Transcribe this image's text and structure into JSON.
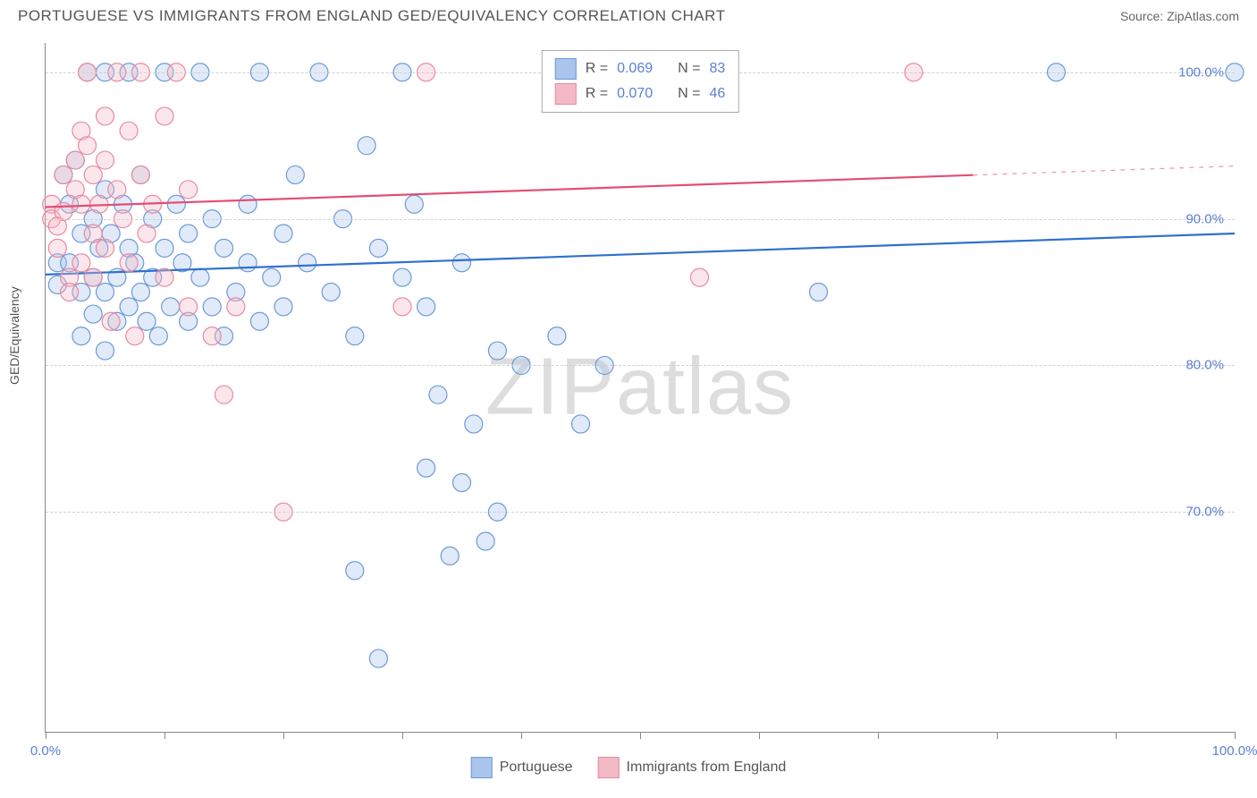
{
  "header": {
    "title": "PORTUGUESE VS IMMIGRANTS FROM ENGLAND GED/EQUIVALENCY CORRELATION CHART",
    "source": "Source: ZipAtlas.com"
  },
  "chart": {
    "type": "scatter",
    "ylabel": "GED/Equivalency",
    "watermark": "ZIPatlas",
    "background_color": "#ffffff",
    "grid_color": "#d0d0d0",
    "axis_color": "#888888",
    "tick_label_color": "#5b7fd1",
    "text_color": "#555555",
    "title_fontsize": 17,
    "label_fontsize": 14,
    "tick_fontsize": 15,
    "xlim": [
      0,
      100
    ],
    "ylim": [
      55,
      102
    ],
    "xticks": [
      0,
      10,
      20,
      30,
      40,
      50,
      60,
      70,
      80,
      90,
      100
    ],
    "yticks": [
      70,
      80,
      90,
      100
    ],
    "xtick_labels": {
      "0": "0.0%",
      "100": "100.0%"
    },
    "ytick_labels": {
      "70": "70.0%",
      "80": "80.0%",
      "90": "90.0%",
      "100": "100.0%"
    },
    "marker_radius": 10,
    "marker_opacity": 0.35,
    "marker_stroke_width": 1.2,
    "trend_line_width": 2.2,
    "series": [
      {
        "id": "portuguese",
        "label": "Portuguese",
        "fill_color": "#aac4ec",
        "stroke_color": "#6b9ad8",
        "line_color": "#2e6fd0",
        "R": "0.069",
        "N": "83",
        "trend": {
          "x1": 0,
          "y1": 86.2,
          "x2": 100,
          "y2": 89.0,
          "solid_until": 100
        },
        "points": [
          [
            1,
            87
          ],
          [
            1,
            85.5
          ],
          [
            1.5,
            93
          ],
          [
            2,
            91
          ],
          [
            2,
            87
          ],
          [
            2.5,
            94
          ],
          [
            3,
            89
          ],
          [
            3,
            85
          ],
          [
            3,
            82
          ],
          [
            3.5,
            100
          ],
          [
            4,
            90
          ],
          [
            4,
            86
          ],
          [
            4,
            83.5
          ],
          [
            4.5,
            88
          ],
          [
            5,
            100
          ],
          [
            5,
            92
          ],
          [
            5,
            85
          ],
          [
            5,
            81
          ],
          [
            5.5,
            89
          ],
          [
            6,
            86
          ],
          [
            6,
            83
          ],
          [
            6.5,
            91
          ],
          [
            7,
            100
          ],
          [
            7,
            88
          ],
          [
            7,
            84
          ],
          [
            7.5,
            87
          ],
          [
            8,
            93
          ],
          [
            8,
            85
          ],
          [
            8.5,
            83
          ],
          [
            9,
            90
          ],
          [
            9,
            86
          ],
          [
            9.5,
            82
          ],
          [
            10,
            100
          ],
          [
            10,
            88
          ],
          [
            10.5,
            84
          ],
          [
            11,
            91
          ],
          [
            11.5,
            87
          ],
          [
            12,
            83
          ],
          [
            12,
            89
          ],
          [
            13,
            100
          ],
          [
            13,
            86
          ],
          [
            14,
            90
          ],
          [
            14,
            84
          ],
          [
            15,
            88
          ],
          [
            15,
            82
          ],
          [
            16,
            85
          ],
          [
            17,
            91
          ],
          [
            17,
            87
          ],
          [
            18,
            100
          ],
          [
            18,
            83
          ],
          [
            19,
            86
          ],
          [
            20,
            89
          ],
          [
            20,
            84
          ],
          [
            21,
            93
          ],
          [
            22,
            87
          ],
          [
            23,
            100
          ],
          [
            24,
            85
          ],
          [
            25,
            90
          ],
          [
            26,
            82
          ],
          [
            26,
            66
          ],
          [
            27,
            95
          ],
          [
            28,
            88
          ],
          [
            28,
            60
          ],
          [
            30,
            100
          ],
          [
            30,
            86
          ],
          [
            31,
            91
          ],
          [
            32,
            84
          ],
          [
            32,
            73
          ],
          [
            33,
            78
          ],
          [
            34,
            67
          ],
          [
            35,
            87
          ],
          [
            35,
            72
          ],
          [
            36,
            76
          ],
          [
            37,
            68
          ],
          [
            38,
            81
          ],
          [
            38,
            70
          ],
          [
            40,
            80
          ],
          [
            43,
            82
          ],
          [
            45,
            76
          ],
          [
            47,
            80
          ],
          [
            65,
            85
          ],
          [
            85,
            100
          ],
          [
            100,
            100
          ]
        ]
      },
      {
        "id": "england",
        "label": "Immigrants from England",
        "fill_color": "#f3b9c6",
        "stroke_color": "#e88aa0",
        "line_color": "#e24d74",
        "R": "0.070",
        "N": "46",
        "trend": {
          "x1": 0,
          "y1": 90.8,
          "x2": 100,
          "y2": 93.6,
          "solid_until": 78
        },
        "points": [
          [
            0.5,
            91
          ],
          [
            0.5,
            90
          ],
          [
            1,
            89.5
          ],
          [
            1,
            88
          ],
          [
            1.5,
            93
          ],
          [
            1.5,
            90.5
          ],
          [
            2,
            86
          ],
          [
            2,
            85
          ],
          [
            2.5,
            94
          ],
          [
            2.5,
            92
          ],
          [
            3,
            96
          ],
          [
            3,
            91
          ],
          [
            3,
            87
          ],
          [
            3.5,
            100
          ],
          [
            3.5,
            95
          ],
          [
            4,
            93
          ],
          [
            4,
            89
          ],
          [
            4,
            86
          ],
          [
            4.5,
            91
          ],
          [
            5,
            97
          ],
          [
            5,
            94
          ],
          [
            5,
            88
          ],
          [
            5.5,
            83
          ],
          [
            6,
            100
          ],
          [
            6,
            92
          ],
          [
            6.5,
            90
          ],
          [
            7,
            96
          ],
          [
            7,
            87
          ],
          [
            7.5,
            82
          ],
          [
            8,
            100
          ],
          [
            8,
            93
          ],
          [
            8.5,
            89
          ],
          [
            9,
            91
          ],
          [
            10,
            97
          ],
          [
            10,
            86
          ],
          [
            11,
            100
          ],
          [
            12,
            92
          ],
          [
            12,
            84
          ],
          [
            14,
            82
          ],
          [
            15,
            78
          ],
          [
            16,
            84
          ],
          [
            20,
            70
          ],
          [
            30,
            84
          ],
          [
            32,
            100
          ],
          [
            55,
            86
          ],
          [
            73,
            100
          ]
        ]
      }
    ],
    "legend_top": {
      "r_prefix": "R =",
      "n_prefix": "N ="
    }
  }
}
